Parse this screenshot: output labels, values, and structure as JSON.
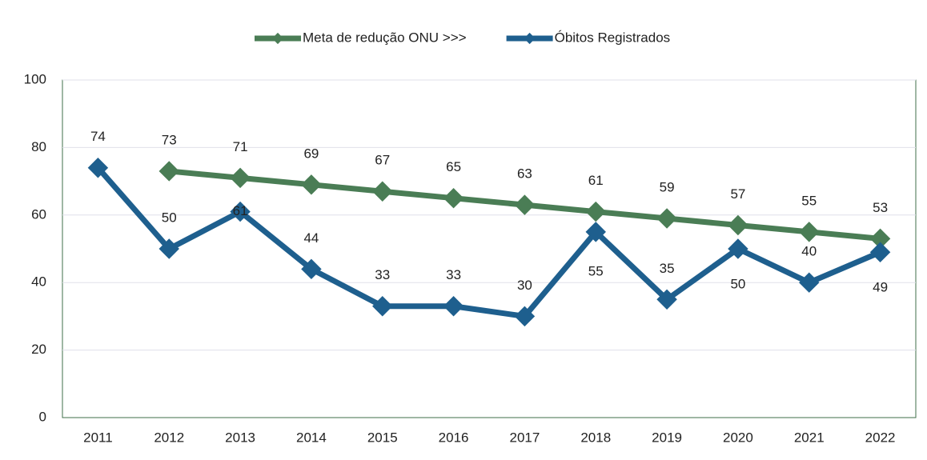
{
  "chart_data": {
    "type": "line",
    "categories": [
      "2011",
      "2012",
      "2013",
      "2014",
      "2015",
      "2016",
      "2017",
      "2018",
      "2019",
      "2020",
      "2021",
      "2022"
    ],
    "series": [
      {
        "name": "Meta de redução ONU >>>",
        "color": "#4a7d55",
        "values": [
          null,
          73,
          71,
          69,
          67,
          65,
          63,
          61,
          59,
          57,
          55,
          53
        ]
      },
      {
        "name": "Óbitos Registrados",
        "color": "#1e5f8e",
        "values": [
          74,
          50,
          61,
          44,
          33,
          33,
          30,
          55,
          35,
          50,
          40,
          49
        ]
      }
    ],
    "ylim": [
      0,
      100
    ],
    "yticks": [
      0,
      20,
      40,
      60,
      80,
      100
    ],
    "grid": true,
    "legend": "top"
  }
}
